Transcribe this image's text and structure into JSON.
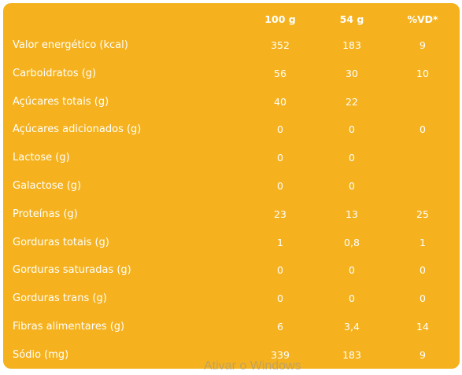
{
  "colors": {
    "panel_background": "#f5b21e",
    "text": "#ffffff"
  },
  "table": {
    "headers": [
      "100 g",
      "54 g",
      "%VD*"
    ],
    "rows": [
      {
        "label": "Valor energético (kcal)",
        "values": [
          "352",
          "183",
          "9"
        ]
      },
      {
        "label": "Carboidratos (g)",
        "values": [
          "56",
          "30",
          "10"
        ]
      },
      {
        "label": "Açúcares totais (g)",
        "values": [
          "40",
          "22",
          ""
        ]
      },
      {
        "label": "Açúcares adicionados (g)",
        "values": [
          "0",
          "0",
          "0"
        ]
      },
      {
        "label": "Lactose (g)",
        "values": [
          "0",
          "0",
          ""
        ]
      },
      {
        "label": "Galactose (g)",
        "values": [
          "0",
          "0",
          ""
        ]
      },
      {
        "label": "Proteínas (g)",
        "values": [
          "23",
          "13",
          "25"
        ]
      },
      {
        "label": "Gorduras totais (g)",
        "values": [
          "1",
          "0,8",
          "1"
        ]
      },
      {
        "label": "Gorduras saturadas (g)",
        "values": [
          "0",
          "0",
          "0"
        ]
      },
      {
        "label": "Gorduras trans (g)",
        "values": [
          "0",
          "0",
          "0"
        ]
      },
      {
        "label": "Fibras alimentares (g)",
        "values": [
          "6",
          "3,4",
          "14"
        ]
      },
      {
        "label": "Sódio (mg)",
        "values": [
          "339",
          "183",
          "9"
        ]
      }
    ]
  },
  "watermark": {
    "text": "Ativar o Windows"
  }
}
